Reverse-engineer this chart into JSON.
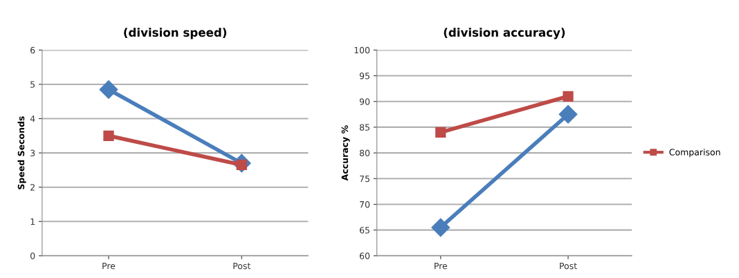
{
  "chart_data": [
    {
      "type": "line",
      "title": "(division speed)",
      "ylabel": "Speed Seconds",
      "categories": [
        "Pre",
        "Post"
      ],
      "series": [
        {
          "color": "#4a7ebb",
          "marker": "diamond",
          "values": [
            4.85,
            2.7
          ]
        },
        {
          "color": "#be4b48",
          "marker": "square",
          "values": [
            3.5,
            2.65
          ]
        }
      ],
      "ylim": [
        0,
        6
      ],
      "yticks": [
        0,
        1,
        2,
        3,
        4,
        5,
        6
      ],
      "grid": "y",
      "legend": false
    },
    {
      "type": "line",
      "title": "(division accuracy)",
      "ylabel": "Accuracy %",
      "categories": [
        "Pre",
        "Post"
      ],
      "series": [
        {
          "color": "#4a7ebb",
          "marker": "diamond",
          "values": [
            65.5,
            87.5
          ]
        },
        {
          "name": "Comparison",
          "color": "#be4b48",
          "marker": "square",
          "values": [
            84,
            91
          ]
        }
      ],
      "ylim": [
        60,
        100
      ],
      "yticks": [
        60,
        65,
        70,
        75,
        80,
        85,
        90,
        95,
        100
      ],
      "grid": "y",
      "legend": "right"
    }
  ]
}
